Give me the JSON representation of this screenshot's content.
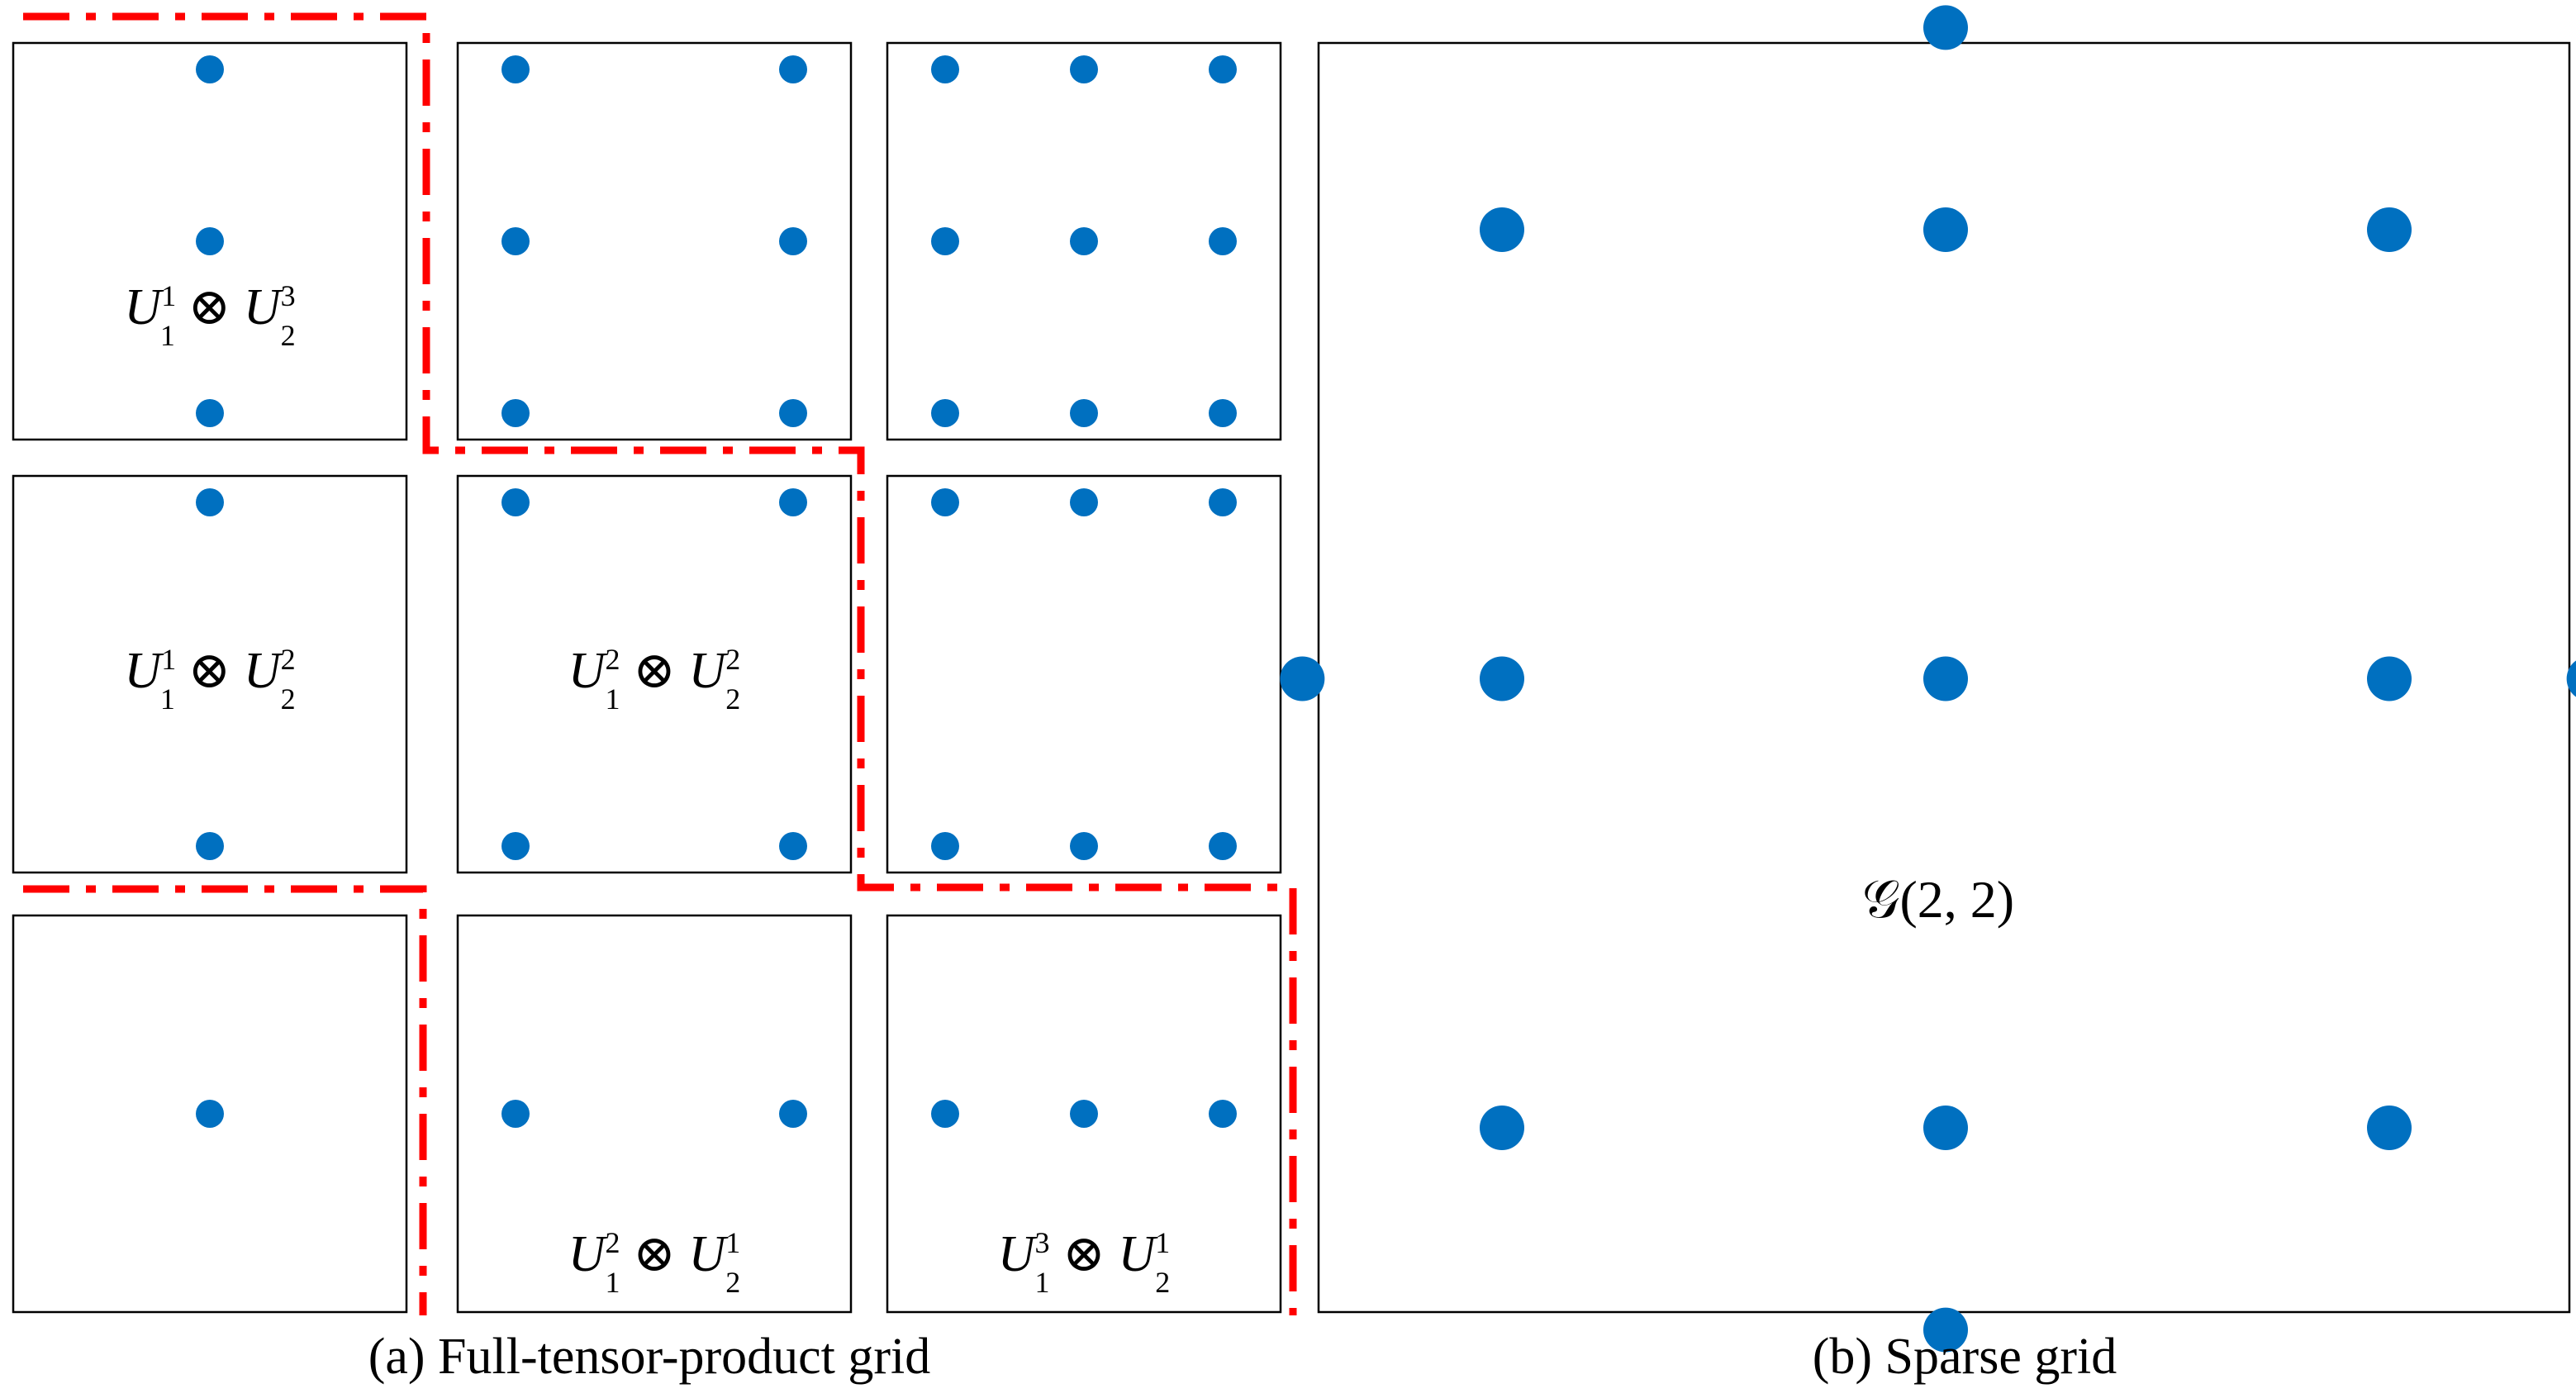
{
  "panel_a": {
    "caption": "(a) Full-tensor-product grid",
    "subplots": [
      {
        "id": "r1c1",
        "row": 1,
        "col": 1,
        "label": {
          "a": "1",
          "b": "3"
        },
        "points": [
          [
            0.5,
            0.0
          ],
          [
            0.5,
            0.5
          ],
          [
            0.5,
            1.0
          ]
        ]
      },
      {
        "id": "r1c2",
        "row": 1,
        "col": 2,
        "label": null,
        "points": [
          [
            0,
            0
          ],
          [
            1,
            0
          ],
          [
            0,
            0.5
          ],
          [
            1,
            0.5
          ],
          [
            0,
            1
          ],
          [
            1,
            1
          ]
        ]
      },
      {
        "id": "r1c3",
        "row": 1,
        "col": 3,
        "label": null,
        "points": [
          [
            0,
            0
          ],
          [
            0.5,
            0
          ],
          [
            1,
            0
          ],
          [
            0,
            0.5
          ],
          [
            0.5,
            0.5
          ],
          [
            1,
            0.5
          ],
          [
            0,
            1
          ],
          [
            0.5,
            1
          ],
          [
            1,
            1
          ]
        ]
      },
      {
        "id": "r2c1",
        "row": 2,
        "col": 1,
        "label": {
          "a": "1",
          "b": "2"
        },
        "points": [
          [
            0.5,
            0
          ],
          [
            0.5,
            1
          ]
        ]
      },
      {
        "id": "r2c2",
        "row": 2,
        "col": 2,
        "label": {
          "a": "2",
          "b": "2"
        },
        "points": [
          [
            0,
            0
          ],
          [
            1,
            0
          ],
          [
            0,
            1
          ],
          [
            1,
            1
          ]
        ]
      },
      {
        "id": "r2c3",
        "row": 2,
        "col": 3,
        "label": null,
        "points": [
          [
            0,
            0
          ],
          [
            0.5,
            0
          ],
          [
            1,
            0
          ],
          [
            0,
            1
          ],
          [
            0.5,
            1
          ],
          [
            1,
            1
          ]
        ]
      },
      {
        "id": "r3c1",
        "row": 3,
        "col": 1,
        "label": null,
        "points": [
          [
            0.5,
            0.5
          ]
        ]
      },
      {
        "id": "r3c2",
        "row": 3,
        "col": 2,
        "label": {
          "a": "2",
          "b": "1"
        },
        "points": [
          [
            0,
            0.5
          ],
          [
            1,
            0.5
          ]
        ]
      },
      {
        "id": "r3c3",
        "row": 3,
        "col": 3,
        "label": {
          "a": "3",
          "b": "1"
        },
        "points": [
          [
            0,
            0.5
          ],
          [
            0.5,
            0.5
          ],
          [
            1,
            0.5
          ]
        ]
      }
    ]
  },
  "panel_b": {
    "caption": "(b) Sparse grid",
    "label": "𝒢(2, 2)",
    "points": [
      [
        0,
        0
      ],
      [
        0.5,
        0
      ],
      [
        1,
        0
      ],
      [
        0.5,
        -0.225
      ],
      [
        -0.225,
        0.5
      ],
      [
        0,
        0.5
      ],
      [
        0.5,
        0.5
      ],
      [
        1,
        0.5
      ],
      [
        1.225,
        0.5
      ],
      [
        0,
        1
      ],
      [
        0.5,
        1
      ],
      [
        1,
        1
      ],
      [
        0.5,
        1.225
      ]
    ]
  },
  "symbols": {
    "base": "U",
    "sub1": "1",
    "sub2": "2",
    "otimes": "⊗"
  },
  "colors": {
    "point": "#0070c0",
    "boundary": "#ff0000",
    "frame": "#000000"
  }
}
